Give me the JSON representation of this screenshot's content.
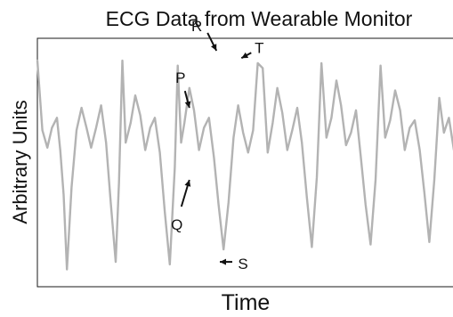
{
  "chart_data": {
    "type": "line",
    "title": "ECG Data from Wearable Monitor",
    "xlabel": "Time",
    "ylabel": "Arbitrary Units",
    "xlim": [
      0,
      100
    ],
    "ylim": [
      0,
      100
    ],
    "grid": false,
    "series": [
      {
        "color": "#b3b3b3",
        "x": [
          0.0,
          1.2,
          2.4,
          3.5,
          4.7,
          5.5,
          6.3,
          7.1,
          8.2,
          9.4,
          10.6,
          11.8,
          12.9,
          14.1,
          15.3,
          16.5,
          17.6,
          18.8,
          19.6,
          20.4,
          21.2,
          22.4,
          23.5,
          24.7,
          25.9,
          27.1,
          28.2,
          29.4,
          30.6,
          31.8,
          33.0,
          33.7,
          34.5,
          35.3,
          36.5,
          37.6,
          38.8,
          40.0,
          41.2,
          42.4,
          43.5,
          44.7,
          45.9,
          47.1,
          48.2,
          49.4,
          50.6,
          51.8,
          52.9,
          54.1,
          55.3,
          56.5,
          57.6,
          58.8,
          60.0,
          61.2,
          62.4,
          63.5,
          64.7,
          65.9,
          67.1,
          68.2,
          69.4,
          70.6,
          71.8,
          72.9,
          74.1,
          75.3,
          76.5,
          77.6,
          78.8,
          80.0,
          81.2,
          82.4,
          83.5,
          84.7,
          85.9,
          87.1,
          88.2,
          89.4,
          90.6,
          91.8,
          92.9,
          94.1,
          95.3,
          96.5,
          97.6,
          98.8,
          100.0
        ],
        "values": [
          91,
          63,
          56,
          64,
          68,
          55,
          37,
          7,
          40,
          63,
          72,
          64,
          56,
          64,
          73,
          58,
          34,
          10,
          42,
          91,
          58,
          66,
          77,
          69,
          55,
          64,
          68,
          54,
          30,
          9,
          48,
          89,
          58,
          66,
          80,
          71,
          55,
          64,
          68,
          52,
          33,
          15,
          34,
          60,
          73,
          62,
          54,
          63,
          90,
          88,
          54,
          66,
          80,
          70,
          55,
          63,
          72,
          58,
          36,
          16,
          44,
          90,
          60,
          68,
          83,
          73,
          57,
          62,
          71,
          53,
          33,
          17,
          43,
          89,
          60,
          67,
          79,
          71,
          55,
          64,
          67,
          55,
          38,
          18,
          43,
          76,
          62,
          68,
          55
        ]
      }
    ],
    "annotations": [
      {
        "label": "R",
        "x": 43.0,
        "y": 95
      },
      {
        "label": "T",
        "x": 49.0,
        "y": 92
      },
      {
        "label": "P",
        "x": 36.5,
        "y": 72
      },
      {
        "label": "Q",
        "x": 36.5,
        "y": 43
      },
      {
        "label": "S",
        "x": 43.8,
        "y": 10
      }
    ]
  }
}
